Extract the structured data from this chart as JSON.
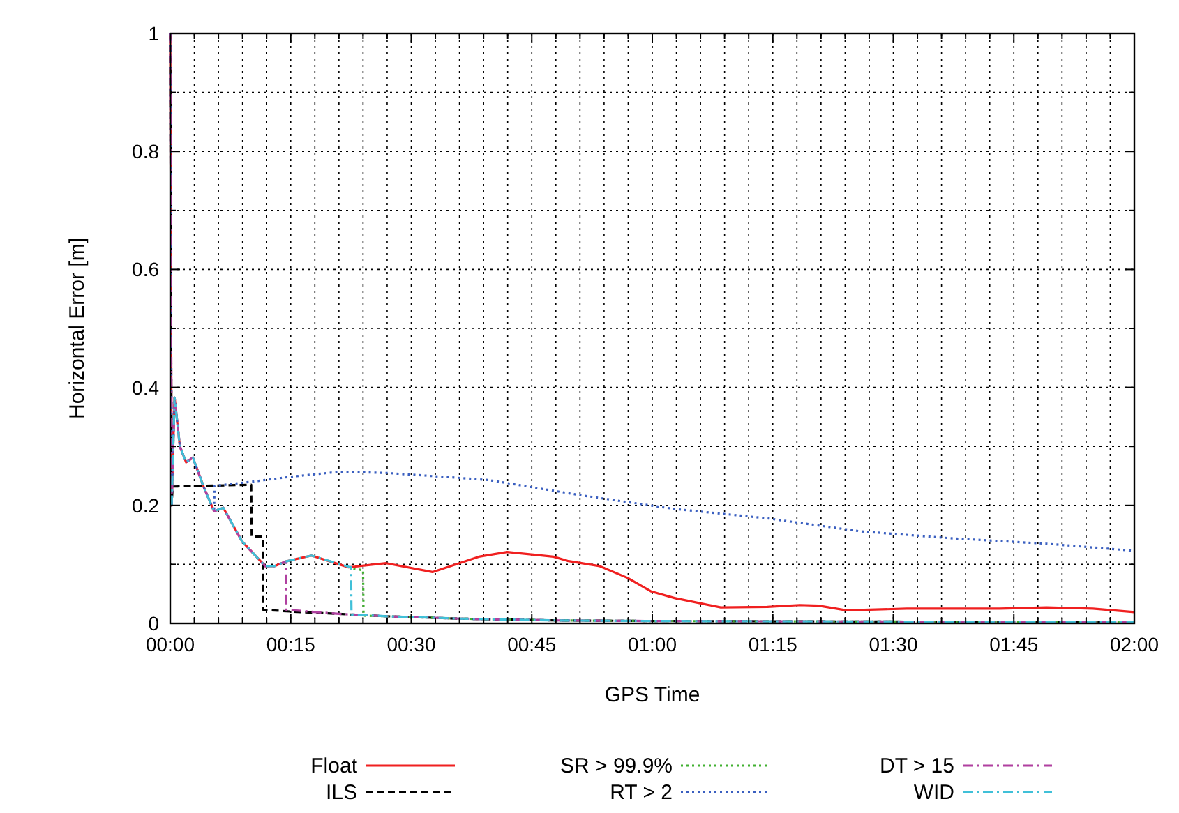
{
  "chart_data": {
    "type": "line",
    "xlabel": "GPS Time",
    "ylabel": "Horizontal Error [m]",
    "xlim": [
      0,
      2
    ],
    "ylim": [
      0,
      1
    ],
    "xticks": [
      {
        "value": 0,
        "label": "00:00"
      },
      {
        "value": 0.05,
        "label": null
      },
      {
        "value": 0.1,
        "label": null
      },
      {
        "value": 0.15,
        "label": null
      },
      {
        "value": 0.2,
        "label": null
      },
      {
        "value": 0.25,
        "label": "00:15"
      },
      {
        "value": 0.3,
        "label": null
      },
      {
        "value": 0.35,
        "label": null
      },
      {
        "value": 0.4,
        "label": null
      },
      {
        "value": 0.45,
        "label": null
      },
      {
        "value": 0.5,
        "label": "00:30"
      },
      {
        "value": 0.55,
        "label": null
      },
      {
        "value": 0.6,
        "label": null
      },
      {
        "value": 0.65,
        "label": null
      },
      {
        "value": 0.7,
        "label": null
      },
      {
        "value": 0.75,
        "label": "00:45"
      },
      {
        "value": 0.8,
        "label": null
      },
      {
        "value": 0.85,
        "label": null
      },
      {
        "value": 0.9,
        "label": null
      },
      {
        "value": 0.95,
        "label": null
      },
      {
        "value": 1,
        "label": "01:00"
      },
      {
        "value": 1.05,
        "label": null
      },
      {
        "value": 1.1,
        "label": null
      },
      {
        "value": 1.15,
        "label": null
      },
      {
        "value": 1.2,
        "label": null
      },
      {
        "value": 1.25,
        "label": "01:15"
      },
      {
        "value": 1.3,
        "label": null
      },
      {
        "value": 1.35,
        "label": null
      },
      {
        "value": 1.4,
        "label": null
      },
      {
        "value": 1.45,
        "label": null
      },
      {
        "value": 1.5,
        "label": "01:30"
      },
      {
        "value": 1.55,
        "label": null
      },
      {
        "value": 1.6,
        "label": null
      },
      {
        "value": 1.65,
        "label": null
      },
      {
        "value": 1.7,
        "label": null
      },
      {
        "value": 1.75,
        "label": "01:45"
      },
      {
        "value": 1.8,
        "label": null
      },
      {
        "value": 1.85,
        "label": null
      },
      {
        "value": 1.9,
        "label": null
      },
      {
        "value": 1.95,
        "label": null
      },
      {
        "value": 2,
        "label": "02:00"
      }
    ],
    "yticks": [
      0,
      {
        "value": 0.1,
        "label": null
      },
      0.2,
      {
        "value": 0.3,
        "label": null
      },
      0.4,
      {
        "value": 0.5,
        "label": null
      },
      0.6,
      {
        "value": 0.7,
        "label": null
      },
      0.8,
      {
        "value": 0.9,
        "label": null
      },
      1
    ],
    "grid": true,
    "legend": "bottom",
    "marker": "none",
    "series": [
      {
        "name": "Float",
        "color": "#f02020",
        "line_style": "solid",
        "x": [
          0,
          0.003,
          0.009,
          0.02,
          0.033,
          0.047,
          0.07,
          0.091,
          0.11,
          0.149,
          0.197,
          0.216,
          0.24,
          0.293,
          0.37,
          0.448,
          0.544,
          0.64,
          0.699,
          0.795,
          0.824,
          0.891,
          0.949,
          0.998,
          1.046,
          1.142,
          1.239,
          1.306,
          1.345,
          1.403,
          1.528,
          1.721,
          1.818,
          1.914,
          2
        ],
        "values": [
          1,
          0.2,
          0.383,
          0.3,
          0.273,
          0.281,
          0.23,
          0.19,
          0.196,
          0.139,
          0.097,
          0.097,
          0.105,
          0.115,
          0.095,
          0.102,
          0.087,
          0.113,
          0.121,
          0.113,
          0.106,
          0.097,
          0.077,
          0.054,
          0.043,
          0.027,
          0.028,
          0.031,
          0.03,
          0.022,
          0.025,
          0.025,
          0.027,
          0.025,
          0.019
        ]
      },
      {
        "name": "ILS",
        "color": "#000000",
        "line_style": "dashed",
        "x": [
          0,
          0.003,
          0.005,
          0.168,
          0.169,
          0.192,
          0.193,
          0.25,
          0.35,
          0.45,
          0.6,
          0.8,
          1,
          1.5,
          2
        ],
        "values": [
          1,
          0.2,
          0.232,
          0.235,
          0.147,
          0.147,
          0.023,
          0.02,
          0.016,
          0.012,
          0.008,
          0.005,
          0.004,
          0.003,
          0.002
        ]
      },
      {
        "name": "SR > 99.9%",
        "color": "#40b030",
        "line_style": "dotted",
        "x": [
          0.38,
          0.4,
          0.401,
          0.45,
          0.6,
          0.8,
          1,
          1.5,
          2
        ],
        "values": [
          0.093,
          0.09,
          0.013,
          0.012,
          0.008,
          0.005,
          0.004,
          0.003,
          0.002
        ]
      },
      {
        "name": "RT > 2",
        "color": "#3a5fc0",
        "line_style": "dotted",
        "x": [
          0,
          0.003,
          0.009,
          0.02,
          0.033,
          0.047,
          0.07,
          0.091,
          0.092,
          0.168,
          0.255,
          0.351,
          0.448,
          0.592,
          0.66,
          0.853,
          1.046,
          1.239,
          1.432,
          1.625,
          1.818,
          2
        ],
        "values": [
          1,
          0.2,
          0.383,
          0.3,
          0.273,
          0.281,
          0.23,
          0.19,
          0.233,
          0.24,
          0.249,
          0.257,
          0.255,
          0.247,
          0.243,
          0.217,
          0.194,
          0.178,
          0.156,
          0.144,
          0.135,
          0.123
        ]
      },
      {
        "name": "DT > 15",
        "color": "#b040a0",
        "line_style": "dashdot",
        "x": [
          0,
          0.003,
          0.009,
          0.02,
          0.033,
          0.047,
          0.07,
          0.091,
          0.11,
          0.149,
          0.197,
          0.216,
          0.24,
          0.241,
          0.35,
          0.45,
          0.6,
          0.8,
          1,
          1.5,
          2
        ],
        "values": [
          1,
          0.2,
          0.383,
          0.3,
          0.273,
          0.281,
          0.23,
          0.19,
          0.196,
          0.139,
          0.097,
          0.097,
          0.105,
          0.023,
          0.016,
          0.012,
          0.008,
          0.005,
          0.004,
          0.003,
          0.002
        ]
      },
      {
        "name": "WID",
        "color": "#40c0d8",
        "line_style": "dashdot",
        "x": [
          0.003,
          0.009,
          0.02,
          0.033,
          0.047,
          0.07,
          0.091,
          0.11,
          0.149,
          0.197,
          0.216,
          0.24,
          0.293,
          0.37,
          0.375,
          0.376,
          0.45,
          0.6,
          0.8,
          1,
          1.5,
          2
        ],
        "values": [
          0.2,
          0.383,
          0.3,
          0.273,
          0.281,
          0.23,
          0.19,
          0.196,
          0.139,
          0.097,
          0.097,
          0.105,
          0.115,
          0.096,
          0.095,
          0.015,
          0.012,
          0.008,
          0.005,
          0.004,
          0.003,
          0.002
        ]
      }
    ]
  }
}
